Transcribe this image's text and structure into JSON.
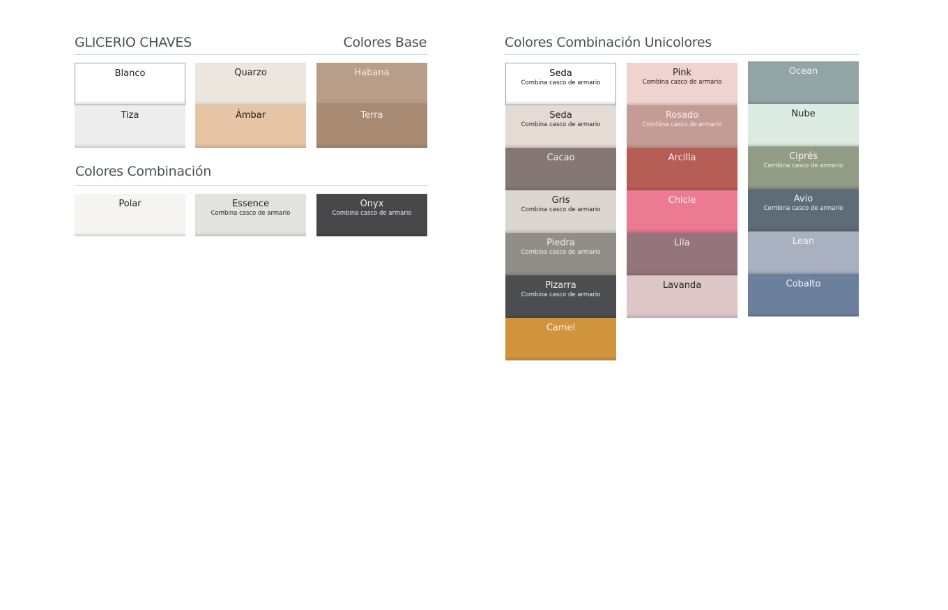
{
  "left": {
    "brand": "GLICERIO CHAVES",
    "base_title": "Colores Base",
    "base_columns": [
      [
        {
          "name": "Blanco",
          "color": "#ffffff",
          "text": "#222"
        },
        {
          "name": "Tiza",
          "color": "#eeeded",
          "text": "#222"
        }
      ],
      [
        {
          "name": "Quarzo",
          "color": "#ebe7df",
          "text": "#222"
        },
        {
          "name": "Ámbar",
          "color": "#e6c4a4",
          "text": "#222"
        }
      ],
      [
        {
          "name": "Habana",
          "color": "#b89d88",
          "text": "#f4eeea"
        },
        {
          "name": "Terra",
          "color": "#a88a72",
          "text": "#f4eeea"
        }
      ]
    ],
    "combo_title": "Colores Combinación",
    "combo": [
      {
        "name": "Polar",
        "sub": "",
        "color": "#f6f4f0",
        "text": "#222"
      },
      {
        "name": "Essence",
        "sub": "Combina casco de armario",
        "color": "#e2e2e0",
        "text": "#222"
      },
      {
        "name": "Onyx",
        "sub": "Combina casco de armario",
        "color": "#48484a",
        "text": "#f0f0f0"
      }
    ]
  },
  "right": {
    "title": "Colores Combinación Unicolores",
    "columns": [
      [
        {
          "name": "Seda",
          "sub": "Combina casco de armario",
          "color": "#ffffff",
          "text": "#111"
        },
        {
          "name": "Seda",
          "sub": "Combina casco de armario",
          "color": "#e6dad4",
          "text": "#222"
        },
        {
          "name": "Cacao",
          "sub": "",
          "color": "#857874",
          "text": "#f4f0ee"
        },
        {
          "name": "Gris",
          "sub": "Combina casco de armario",
          "color": "#dcd6d1",
          "text": "#222"
        },
        {
          "name": "Piedra",
          "sub": "Combina casco de armario",
          "color": "#918d89",
          "text": "#f4f0ee"
        },
        {
          "name": "Pizarra",
          "sub": "Combina casco de armario",
          "color": "#4c4d50",
          "text": "#f0f0f0"
        },
        {
          "name": "Camel",
          "sub": "",
          "color": "#d0953c",
          "text": "#fbefe0"
        }
      ],
      [
        {
          "name": "Pink",
          "sub": "Combina casco de armario",
          "color": "#efd3d0",
          "text": "#222"
        },
        {
          "name": "Rosado",
          "sub": "Combina casco de armario",
          "color": "#c59b95",
          "text": "#f8eeec"
        },
        {
          "name": "Arcilla",
          "sub": "",
          "color": "#b65d55",
          "text": "#f8eeec"
        },
        {
          "name": "Chicle",
          "sub": "",
          "color": "#ec7a92",
          "text": "#fbeef0"
        },
        {
          "name": "Lila",
          "sub": "",
          "color": "#93757b",
          "text": "#f8eeee"
        },
        {
          "name": "Lavanda",
          "sub": "",
          "color": "#dcc6c7",
          "text": "#222"
        }
      ],
      [
        {
          "name": "Ocean",
          "sub": "",
          "color": "#93a4a6",
          "text": "#f0f4f4"
        },
        {
          "name": "Nube",
          "sub": "",
          "color": "#dcece3",
          "text": "#222"
        },
        {
          "name": "Ciprés",
          "sub": "Combina casco de armario",
          "color": "#939c85",
          "text": "#f4f4ee"
        },
        {
          "name": "Avio",
          "sub": "Combina casco de armario",
          "color": "#5e6c77",
          "text": "#f0f2f4"
        },
        {
          "name": "Lean",
          "sub": "",
          "color": "#a9b0c0",
          "text": "#f4f4f8"
        },
        {
          "name": "Cobalto",
          "sub": "",
          "color": "#6c7f9d",
          "text": "#f0f2f8"
        }
      ]
    ]
  }
}
